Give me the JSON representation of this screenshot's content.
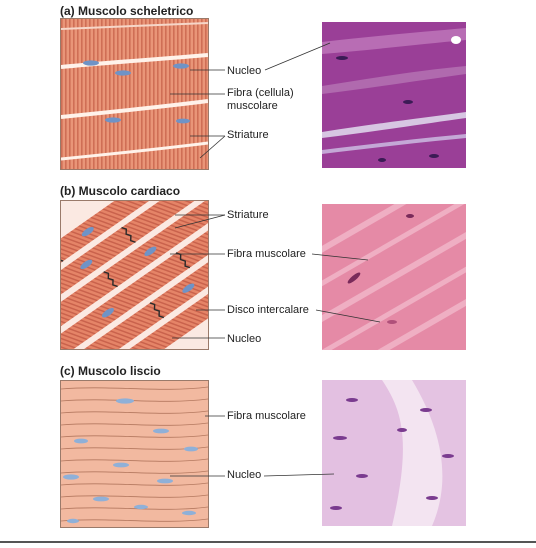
{
  "panels": {
    "a": {
      "title": "(a) Muscolo scheletrico",
      "labels": {
        "nucleus": "Nucleo",
        "fiber_line1": "Fibra (cellula)",
        "fiber_line2": "muscolare",
        "striations": "Striature"
      }
    },
    "b": {
      "title": "(b) Muscolo cardiaco",
      "labels": {
        "striations": "Striature",
        "fiber": "Fibra muscolare",
        "disc": "Disco intercalare",
        "nucleus": "Nucleo"
      }
    },
    "c": {
      "title": "(c) Muscolo liscio",
      "labels": {
        "fiber": "Fibra muscolare",
        "nucleus": "Nucleo"
      }
    }
  },
  "colors": {
    "skeletal_fiber": "#e8977a",
    "cardiac_fiber": "#e07e68",
    "smooth_bg": "#f2b9a0",
    "nucleus": "#6f93c6",
    "micro_skeletal": "#9a3f97",
    "micro_cardiac": "#e58aa6",
    "micro_smooth": "#d9a6d6"
  }
}
